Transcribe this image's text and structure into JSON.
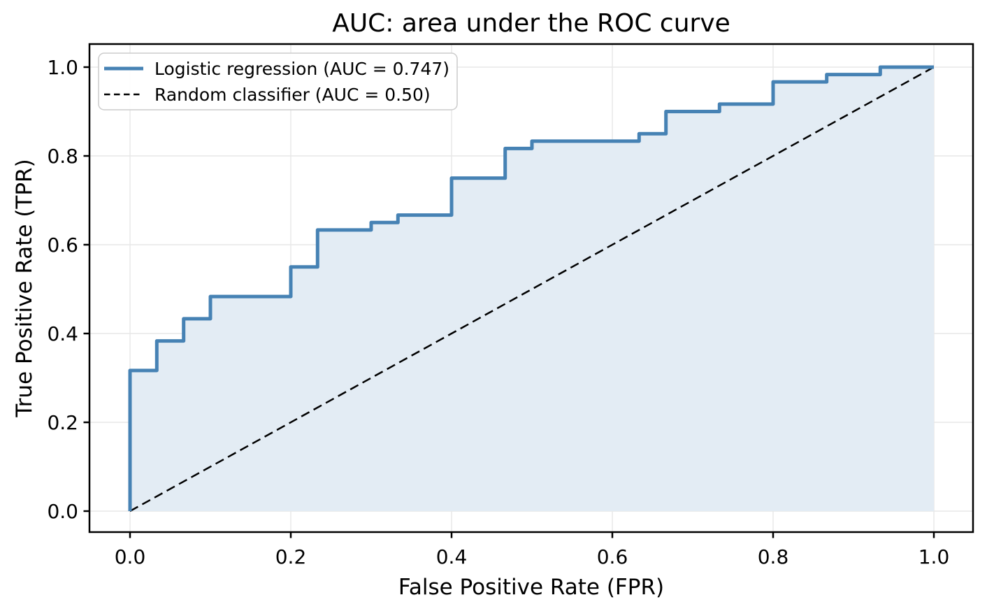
{
  "figure": {
    "title": "AUC: area under the ROC curve",
    "background_color": "#ffffff",
    "text_color": "#000000"
  },
  "chart_data": {
    "type": "line",
    "subtype": "roc-curve",
    "title": "AUC: area under the ROC curve",
    "xlabel": "False Positive Rate (FPR)",
    "ylabel": "True Positive Rate (TPR)",
    "xlim": [
      -0.05,
      1.05
    ],
    "ylim": [
      -0.05,
      1.05
    ],
    "grid": true,
    "grid_color": "#e7e7e7",
    "legend_position": "upper left",
    "x_ticks": [
      0.0,
      0.2,
      0.4,
      0.6,
      0.8,
      1.0
    ],
    "y_ticks": [
      0.0,
      0.2,
      0.4,
      0.6,
      0.8,
      1.0
    ],
    "x_tick_labels": [
      "0.0",
      "0.2",
      "0.4",
      "0.6",
      "0.8",
      "1.0"
    ],
    "y_tick_labels": [
      "0.0",
      "0.2",
      "0.4",
      "0.6",
      "0.8",
      "1.0"
    ],
    "series": [
      {
        "name": "Logistic regression (AUC = 0.747)",
        "auc": 0.747,
        "line_style": "solid",
        "draw_style": "steps-post",
        "color": "#4682b4",
        "fill_under": true,
        "fill_color": "#e3ecf4",
        "points": [
          [
            0.0,
            0.0
          ],
          [
            0.0,
            0.3167
          ],
          [
            0.0333,
            0.3833
          ],
          [
            0.0667,
            0.4333
          ],
          [
            0.1,
            0.4833
          ],
          [
            0.2,
            0.55
          ],
          [
            0.2333,
            0.6333
          ],
          [
            0.3,
            0.65
          ],
          [
            0.3333,
            0.6667
          ],
          [
            0.4,
            0.75
          ],
          [
            0.4667,
            0.8167
          ],
          [
            0.5,
            0.8333
          ],
          [
            0.6333,
            0.85
          ],
          [
            0.6667,
            0.9
          ],
          [
            0.7333,
            0.9167
          ],
          [
            0.8,
            0.9667
          ],
          [
            0.8667,
            0.9833
          ],
          [
            0.9333,
            1.0
          ],
          [
            1.0,
            1.0
          ]
        ]
      },
      {
        "name": "Random classifier (AUC = 0.50)",
        "auc": 0.5,
        "line_style": "dashed",
        "draw_style": "linear",
        "color": "#000000",
        "fill_under": false,
        "points": [
          [
            0.0,
            0.0
          ],
          [
            1.0,
            1.0
          ]
        ]
      }
    ]
  }
}
